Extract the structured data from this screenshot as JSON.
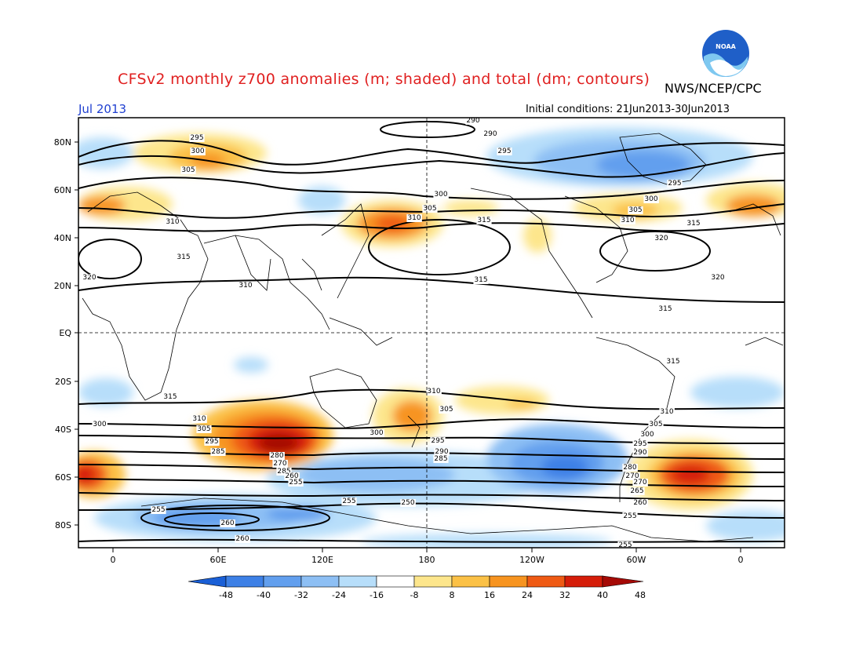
{
  "title": "CFSv2 monthly z700 anomalies (m; shaded) and total (dm; contours)",
  "agency": "NWS/NCEP/CPC",
  "logo_text": "NOAA",
  "month": "Jul 2013",
  "initial_conditions": "Initial conditions: 21Jun2013-30Jun2013",
  "lat_labels": [
    "80N",
    "60N",
    "40N",
    "20N",
    "EQ",
    "20S",
    "40S",
    "60S",
    "80S"
  ],
  "lon_labels": [
    "0",
    "60E",
    "120E",
    "180",
    "120W",
    "60W",
    "0"
  ],
  "colorbar": {
    "labels": [
      "-48",
      "-40",
      "-32",
      "-24",
      "-16",
      "-8",
      "8",
      "16",
      "24",
      "32",
      "40",
      "48"
    ],
    "colors": [
      "#1a5fd6",
      "#3d80e6",
      "#629fee",
      "#8dbff4",
      "#b7defa",
      "#ffffff",
      "#fde68c",
      "#fbc146",
      "#f79420",
      "#ef5a14",
      "#d51d09",
      "#a50a06"
    ]
  },
  "contour_labels": [
    "290",
    "295",
    "300",
    "305",
    "310",
    "315",
    "320",
    "280",
    "270",
    "265",
    "260",
    "255",
    "250",
    "285",
    "275"
  ],
  "colors": {
    "title": "#e02020",
    "month": "#2040d0",
    "noaa_blue": "#1f5fc8",
    "noaa_light": "#7ec8f0"
  }
}
